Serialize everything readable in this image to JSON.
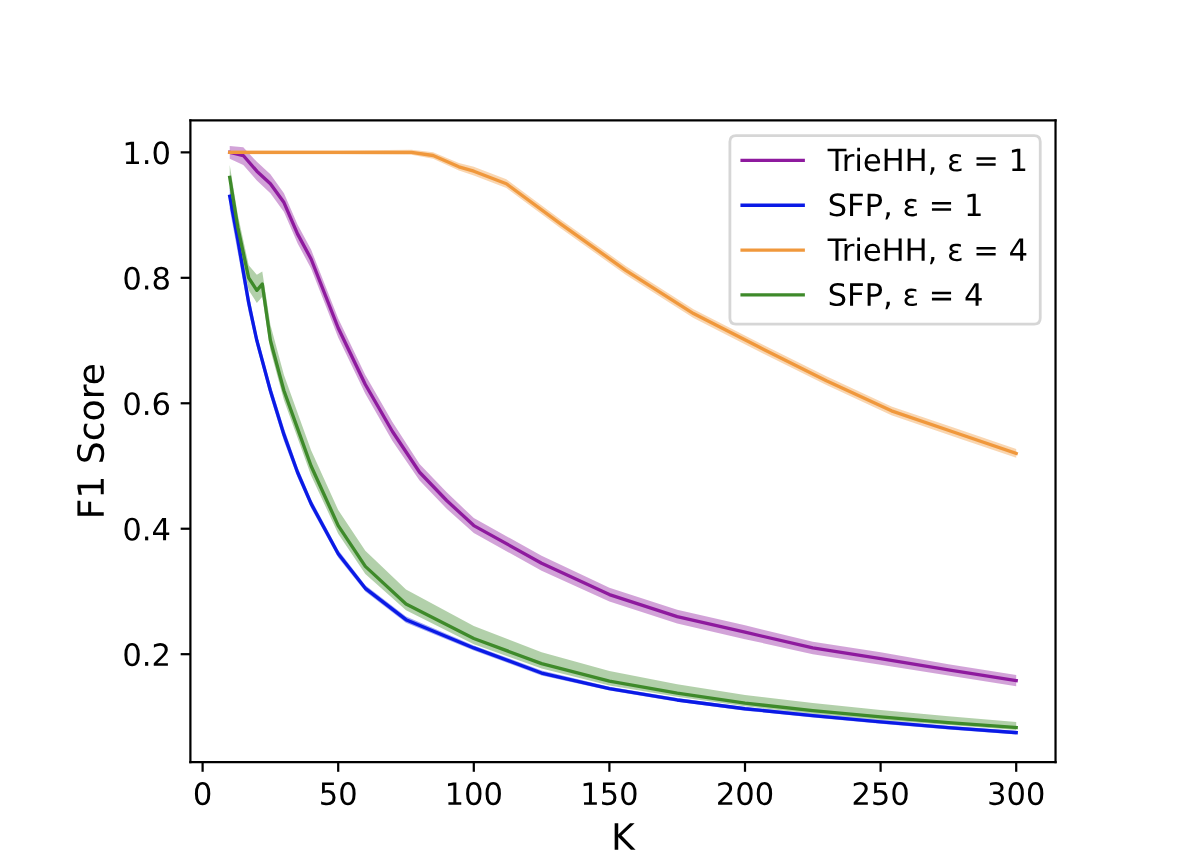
{
  "chart_data": {
    "type": "line",
    "xlabel": "K",
    "ylabel": "F1 Score",
    "xlim": [
      -4.5,
      314.5
    ],
    "ylim": [
      0.028,
      1.051
    ],
    "xticks": [
      0,
      50,
      100,
      150,
      200,
      250,
      300
    ],
    "yticks": [
      0.2,
      0.4,
      0.6,
      0.8,
      {
        "value": 1.0,
        "label": "1.0"
      }
    ],
    "legend": "top right",
    "grid": false,
    "series": [
      {
        "name": "TrieHH, ε = 1",
        "color": "#8e1a9e",
        "x": [
          10,
          15,
          20,
          25,
          30,
          35,
          40,
          50,
          60,
          70,
          80,
          90,
          100,
          125,
          150,
          175,
          200,
          225,
          250,
          275,
          300
        ],
        "values": [
          1.0,
          0.995,
          0.97,
          0.95,
          0.92,
          0.87,
          0.83,
          0.72,
          0.63,
          0.555,
          0.49,
          0.445,
          0.405,
          0.345,
          0.295,
          0.26,
          0.235,
          0.21,
          0.193,
          0.175,
          0.158
        ],
        "lower": [
          0.99,
          0.98,
          0.955,
          0.935,
          0.905,
          0.855,
          0.815,
          0.705,
          0.615,
          0.54,
          0.477,
          0.432,
          0.393,
          0.333,
          0.284,
          0.249,
          0.224,
          0.2,
          0.183,
          0.166,
          0.149
        ],
        "upper": [
          1.01,
          1.008,
          0.985,
          0.965,
          0.935,
          0.885,
          0.845,
          0.735,
          0.645,
          0.57,
          0.503,
          0.458,
          0.417,
          0.357,
          0.306,
          0.271,
          0.246,
          0.22,
          0.203,
          0.184,
          0.167
        ]
      },
      {
        "name": "SFP, ε = 1",
        "color": "#0a1ae6",
        "x": [
          10,
          13,
          17,
          20,
          25,
          30,
          35,
          40,
          50,
          60,
          75,
          100,
          125,
          150,
          175,
          200,
          225,
          250,
          275,
          300
        ],
        "values": [
          0.93,
          0.86,
          0.76,
          0.7,
          0.62,
          0.55,
          0.49,
          0.44,
          0.36,
          0.305,
          0.255,
          0.21,
          0.17,
          0.145,
          0.127,
          0.113,
          0.102,
          0.092,
          0.083,
          0.075
        ],
        "lower": [
          0.91,
          0.84,
          0.745,
          0.69,
          0.61,
          0.54,
          0.482,
          0.433,
          0.354,
          0.3,
          0.25,
          0.206,
          0.166,
          0.142,
          0.124,
          0.11,
          0.099,
          0.089,
          0.08,
          0.072
        ],
        "upper": [
          0.945,
          0.875,
          0.775,
          0.71,
          0.63,
          0.56,
          0.498,
          0.447,
          0.366,
          0.31,
          0.26,
          0.214,
          0.174,
          0.148,
          0.13,
          0.116,
          0.105,
          0.095,
          0.086,
          0.078
        ]
      },
      {
        "name": "TrieHH, ε = 4",
        "color": "#f0983c",
        "x": [
          10,
          30,
          50,
          77,
          85,
          94.5,
          100,
          112,
          132,
          156,
          181,
          205,
          230,
          254,
          279,
          300
        ],
        "values": [
          1.0,
          1.0,
          1.0,
          1.0,
          0.995,
          0.977,
          0.97,
          0.95,
          0.886,
          0.812,
          0.743,
          0.69,
          0.636,
          0.588,
          0.551,
          0.52
        ],
        "lower": [
          0.997,
          0.997,
          0.997,
          0.996,
          0.99,
          0.971,
          0.963,
          0.943,
          0.879,
          0.805,
          0.736,
          0.683,
          0.629,
          0.581,
          0.544,
          0.513
        ],
        "upper": [
          1.003,
          1.003,
          1.003,
          1.004,
          1.0,
          0.983,
          0.977,
          0.957,
          0.893,
          0.819,
          0.75,
          0.697,
          0.643,
          0.595,
          0.558,
          0.527
        ]
      },
      {
        "name": "SFP, ε = 4",
        "color": "#3e8a2a",
        "x": [
          10,
          13,
          17,
          20,
          22,
          25,
          30,
          35,
          40,
          50,
          60,
          75,
          100,
          125,
          150,
          175,
          200,
          225,
          250,
          275,
          300
        ],
        "values": [
          0.96,
          0.88,
          0.8,
          0.78,
          0.79,
          0.7,
          0.62,
          0.56,
          0.5,
          0.405,
          0.34,
          0.28,
          0.225,
          0.185,
          0.157,
          0.138,
          0.122,
          0.11,
          0.1,
          0.091,
          0.083
        ],
        "lower": [
          0.94,
          0.86,
          0.78,
          0.76,
          0.77,
          0.685,
          0.605,
          0.545,
          0.485,
          0.392,
          0.328,
          0.27,
          0.216,
          0.177,
          0.15,
          0.132,
          0.117,
          0.105,
          0.095,
          0.087,
          0.079
        ],
        "upper": [
          0.98,
          0.9,
          0.82,
          0.805,
          0.81,
          0.725,
          0.645,
          0.585,
          0.525,
          0.43,
          0.365,
          0.303,
          0.245,
          0.203,
          0.173,
          0.152,
          0.135,
          0.122,
          0.111,
          0.101,
          0.092
        ]
      }
    ]
  }
}
